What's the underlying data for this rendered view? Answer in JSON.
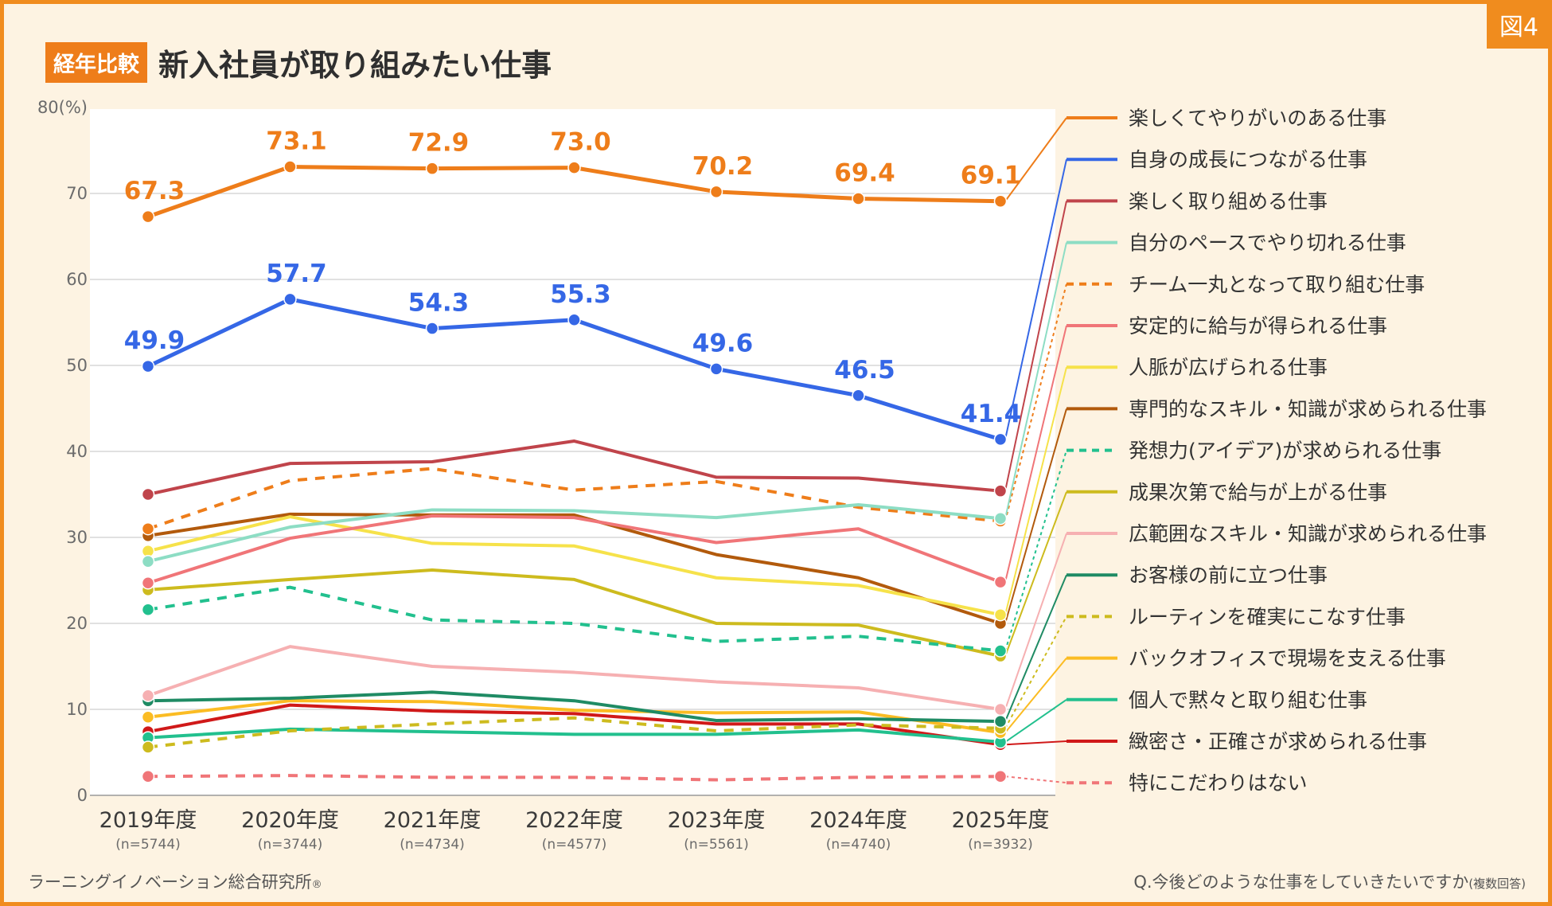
{
  "figure_tag": "図4",
  "header": {
    "badge": "経年比較",
    "title": "新入社員が取り組みたい仕事"
  },
  "footer": {
    "source": "ラーニングイノベーション総合研究所",
    "registered": "®",
    "question": "Q.今後どのような仕事をしていきたいですか",
    "question_note": "(複数回答)"
  },
  "chart_data": {
    "type": "line",
    "title": "新入社員が取り組みたい仕事",
    "x": [
      "2019年度",
      "2020年度",
      "2021年度",
      "2022年度",
      "2023年度",
      "2024年度",
      "2025年度"
    ],
    "sample_sizes": [
      "(n=5744)",
      "(n=3744)",
      "(n=4734)",
      "(n=4577)",
      "(n=5561)",
      "(n=4740)",
      "(n=3932)"
    ],
    "ylabel": "(%)",
    "ylim": [
      0,
      80
    ],
    "yticks": [
      0,
      10,
      20,
      30,
      40,
      50,
      60,
      70,
      80
    ],
    "ytick_labels": [
      "0",
      "10",
      "20",
      "30",
      "40",
      "50",
      "60",
      "70",
      "80(%)"
    ],
    "grid": true,
    "legend_position": "right",
    "series": [
      {
        "name": "楽しくてやりがいのある仕事",
        "color": "#ee7d1a",
        "dashed": false,
        "values": [
          67.3,
          73.1,
          72.9,
          73.0,
          70.2,
          69.4,
          69.1
        ],
        "labels": [
          "67.3",
          "73.1",
          "72.9",
          "73.0",
          "70.2",
          "69.4",
          "69.1"
        ]
      },
      {
        "name": "自身の成長につながる仕事",
        "color": "#3567e6",
        "dashed": false,
        "values": [
          49.9,
          57.7,
          54.3,
          55.3,
          49.6,
          46.5,
          41.4
        ],
        "labels": [
          "49.9",
          "57.7",
          "54.3",
          "55.3",
          "49.6",
          "46.5",
          "41.4"
        ]
      },
      {
        "name": "楽しく取り組める仕事",
        "color": "#c0444b",
        "dashed": false,
        "values": [
          35.0,
          38.6,
          38.8,
          41.2,
          37.0,
          36.9,
          35.4
        ]
      },
      {
        "name": "自分のペースでやり切れる仕事",
        "color": "#8dddc4",
        "dashed": false,
        "values": [
          27.2,
          31.2,
          33.2,
          33.1,
          32.3,
          33.8,
          32.2
        ]
      },
      {
        "name": "チーム一丸となって取り組む仕事",
        "color": "#ee7d1a",
        "dashed": true,
        "values": [
          31.0,
          36.6,
          38.0,
          35.5,
          36.5,
          33.5,
          31.9
        ]
      },
      {
        "name": "安定的に給与が得られる仕事",
        "color": "#f07578",
        "dashed": false,
        "values": [
          24.7,
          29.9,
          32.5,
          32.3,
          29.4,
          31.0,
          24.8
        ]
      },
      {
        "name": "人脈が広げられる仕事",
        "color": "#f6e24a",
        "dashed": false,
        "values": [
          28.4,
          32.4,
          29.3,
          29.0,
          25.3,
          24.4,
          21.0
        ]
      },
      {
        "name": "専門的なスキル・知識が求められる仕事",
        "color": "#b25a0c",
        "dashed": false,
        "values": [
          30.2,
          32.7,
          32.6,
          32.6,
          28.0,
          25.3,
          20.0
        ]
      },
      {
        "name": "発想力(アイデア)が求められる仕事",
        "color": "#22c08e",
        "dashed": true,
        "values": [
          21.6,
          24.2,
          20.4,
          20.0,
          17.9,
          18.5,
          16.8
        ]
      },
      {
        "name": "成果次第で給与が上がる仕事",
        "color": "#cdbb1e",
        "dashed": false,
        "values": [
          23.9,
          25.1,
          26.2,
          25.1,
          20.0,
          19.8,
          16.2
        ]
      },
      {
        "name": "広範囲なスキル・知識が求められる仕事",
        "color": "#f6b0b2",
        "dashed": false,
        "values": [
          11.6,
          17.3,
          15.0,
          14.3,
          13.2,
          12.5,
          10.0
        ]
      },
      {
        "name": "お客様の前に立つ仕事",
        "color": "#1f8b64",
        "dashed": false,
        "values": [
          11.0,
          11.3,
          12.0,
          11.0,
          8.7,
          8.9,
          8.6
        ]
      },
      {
        "name": "ルーティンを確実にこなす仕事",
        "color": "#cdbb1e",
        "dashed": true,
        "values": [
          5.6,
          7.5,
          8.3,
          9.0,
          7.5,
          8.2,
          7.8
        ]
      },
      {
        "name": "バックオフィスで現場を支える仕事",
        "color": "#fbbc23",
        "dashed": false,
        "values": [
          9.1,
          11.0,
          10.9,
          9.9,
          9.6,
          9.7,
          7.3
        ]
      },
      {
        "name": "個人で黙々と取り組む仕事",
        "color": "#22c08e",
        "dashed": false,
        "values": [
          6.7,
          7.7,
          7.4,
          7.1,
          7.1,
          7.6,
          6.2
        ]
      },
      {
        "name": "緻密さ・正確さが求められる仕事",
        "color": "#d01919",
        "dashed": false,
        "values": [
          7.4,
          10.5,
          9.8,
          9.5,
          8.3,
          8.3,
          5.9
        ]
      },
      {
        "name": "特にこだわりはない",
        "color": "#f07578",
        "dashed": true,
        "values": [
          2.2,
          2.3,
          2.1,
          2.1,
          1.8,
          2.1,
          2.2
        ]
      }
    ]
  }
}
